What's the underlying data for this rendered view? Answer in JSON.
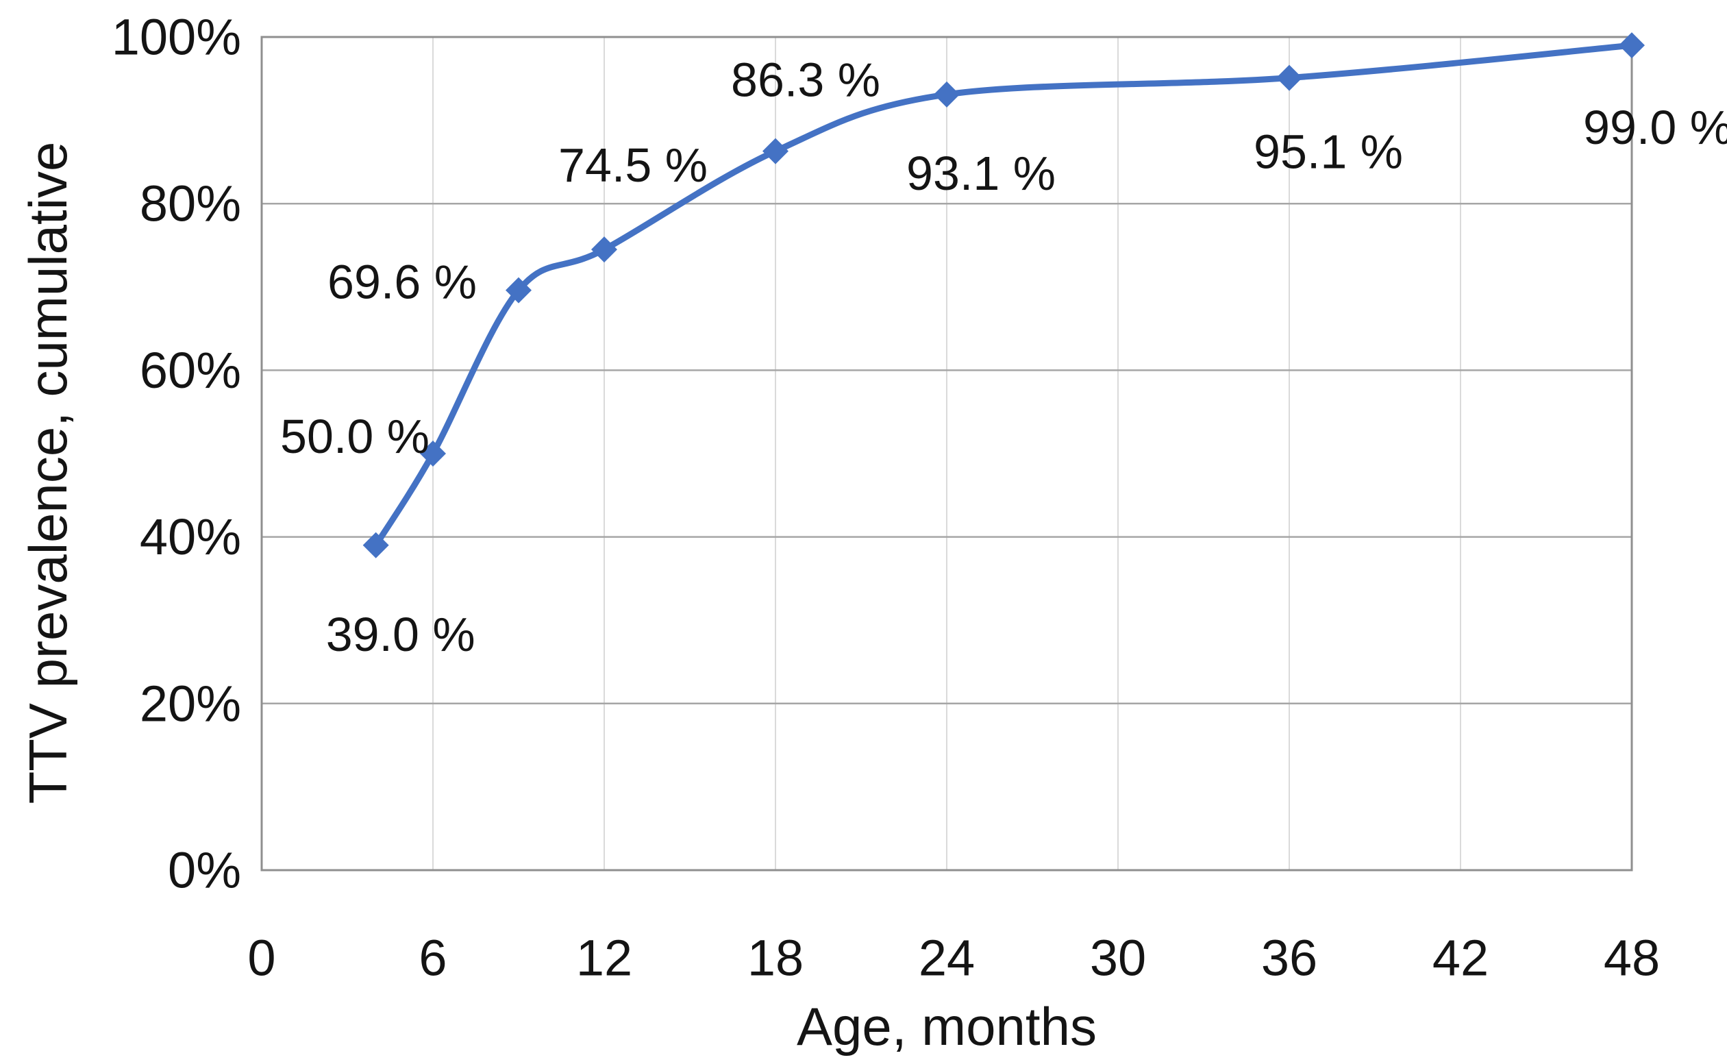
{
  "chart_data": {
    "type": "line",
    "title": "",
    "xlabel": "Age, months",
    "ylabel": "TTV prevalence, cumulative",
    "x": [
      4,
      6,
      9,
      12,
      18,
      24,
      36,
      48
    ],
    "values": [
      39.0,
      50.0,
      69.6,
      74.5,
      86.3,
      93.1,
      95.1,
      99.0
    ],
    "point_labels": [
      "39.0 %",
      "50.0 %",
      "69.6 %",
      "74.5 %",
      "86.3 %",
      "93.1 %",
      "95.1 %",
      "99.0 %"
    ],
    "x_ticks": [
      0,
      6,
      12,
      18,
      24,
      30,
      36,
      42,
      48
    ],
    "x_tick_labels": [
      "0",
      "6",
      "12",
      "18",
      "24",
      "30",
      "36",
      "42",
      "48"
    ],
    "y_ticks": [
      0,
      20,
      40,
      60,
      80,
      100
    ],
    "y_tick_labels": [
      "0%",
      "20%",
      "40%",
      "60%",
      "80%",
      "100%"
    ],
    "xlim": [
      0,
      48
    ],
    "ylim": [
      0,
      100
    ],
    "grid": true,
    "legend": "none",
    "marker": "diamond",
    "line_smoothing": true,
    "colors": {
      "line": "#4472c4",
      "h_gridline": "#a6a6a6",
      "v_gridline": "#dadada",
      "axis_border": "#8f8f8f",
      "text": "#141414",
      "background": "#ffffff"
    }
  }
}
